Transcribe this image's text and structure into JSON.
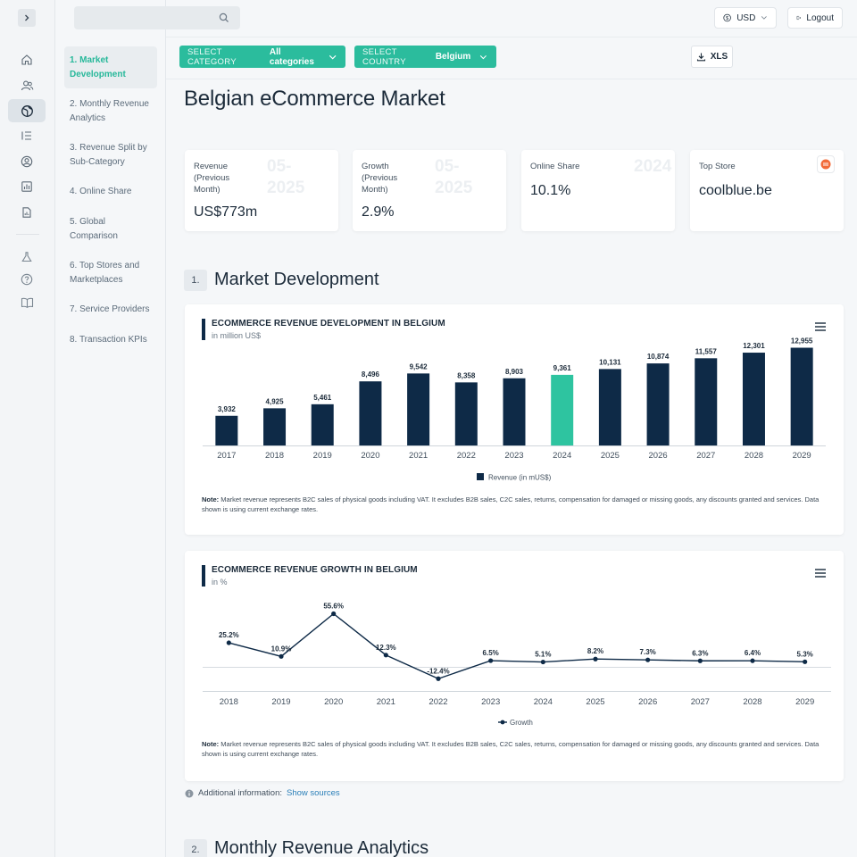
{
  "topbar": {
    "search_placeholder": "",
    "currency_label": "USD",
    "logout_label": "Logout"
  },
  "subnav": {
    "items": [
      {
        "label": "1. Market Development",
        "active": true
      },
      {
        "label": "2. Monthly Revenue Analytics",
        "active": false
      },
      {
        "label": "3. Revenue Split by Sub-Category",
        "active": false
      },
      {
        "label": "4. Online Share",
        "active": false
      },
      {
        "label": "5. Global Comparison",
        "active": false
      },
      {
        "label": "6. Top Stores and Marketplaces",
        "active": false
      },
      {
        "label": "7. Service Providers",
        "active": false
      },
      {
        "label": "8. Transaction KPIs",
        "active": false
      }
    ]
  },
  "filters": {
    "category_label": "SELECT CATEGORY",
    "category_value": "All categories",
    "country_label": "SELECT COUNTRY",
    "country_value": "Belgium",
    "export_label": "XLS"
  },
  "page_title": "Belgian eCommerce Market",
  "kpis": [
    {
      "label": "Revenue (Previous Month)",
      "date": "05-2025",
      "value": "US$773m"
    },
    {
      "label": "Growth (Previous Month)",
      "date": "05-2025",
      "value": "2.9%"
    },
    {
      "label": "Online Share",
      "date": "2024",
      "value": "10.1%"
    },
    {
      "label": "Top Store",
      "date": "",
      "value": "coolblue.be"
    }
  ],
  "sections": [
    {
      "number": "1.",
      "title": "Market Development"
    },
    {
      "number": "2.",
      "title": "Monthly Revenue Analytics"
    }
  ],
  "revenue_chart": {
    "title": "ECOMMERCE REVENUE DEVELOPMENT IN BELGIUM",
    "subtitle": "in million US$",
    "legend": "Revenue (in mUS$)",
    "note_bold": "Note:",
    "note_text": " Market revenue represents B2C sales of physical goods including VAT. It excludes B2B sales, C2C sales, returns, compensation for damaged or missing goods, any discounts granted and services. Data shown is using current exchange rates."
  },
  "growth_chart": {
    "title": "ECOMMERCE REVENUE GROWTH IN BELGIUM",
    "subtitle": "in %",
    "legend": "Growth",
    "note_bold": "Note:",
    "note_text": " Market revenue represents B2C sales of physical goods including VAT. It excludes B2B sales, C2C sales, returns, compensation for damaged or missing goods, any discounts granted and services. Data shown is using current exchange rates."
  },
  "additional_info": {
    "label": "Additional information:",
    "link": "Show sources"
  },
  "colors": {
    "accent": "#2bbc9d",
    "navy": "#0e2a47",
    "highlight_bar": "#2ec4a0"
  },
  "chart_data": [
    {
      "type": "bar",
      "title": "ECOMMERCE REVENUE DEVELOPMENT IN BELGIUM",
      "subtitle": "in million US$",
      "categories": [
        "2017",
        "2018",
        "2019",
        "2020",
        "2021",
        "2022",
        "2023",
        "2024",
        "2025",
        "2026",
        "2027",
        "2028",
        "2029"
      ],
      "series": [
        {
          "name": "Revenue (in mUS$)",
          "values": [
            3932,
            4925,
            5461,
            8496,
            9542,
            8358,
            8903,
            9361,
            10131,
            10874,
            11557,
            12301,
            12955
          ]
        }
      ],
      "highlight_category": "2024",
      "labels": [
        "3,932",
        "4,925",
        "5,461",
        "8,496",
        "9,542",
        "8,358",
        "8,903",
        "9,361",
        "10,131",
        "10,874",
        "11,557",
        "12,301",
        "12,955"
      ],
      "ylim": [
        0,
        14000
      ],
      "legend": "bottom-center"
    },
    {
      "type": "line",
      "title": "ECOMMERCE REVENUE GROWTH IN BELGIUM",
      "subtitle": "in %",
      "categories": [
        "2018",
        "2019",
        "2020",
        "2021",
        "2022",
        "2023",
        "2024",
        "2025",
        "2026",
        "2027",
        "2028",
        "2029"
      ],
      "series": [
        {
          "name": "Growth",
          "values": [
            25.2,
            10.9,
            55.6,
            12.3,
            -12.4,
            6.5,
            5.1,
            8.2,
            7.3,
            6.3,
            6.4,
            5.3
          ]
        }
      ],
      "labels": [
        "25.2%",
        "10.9%",
        "55.6%",
        "12.3%",
        "-12.4%",
        "6.5%",
        "5.1%",
        "8.2%",
        "7.3%",
        "6.3%",
        "6.4%",
        "5.3%"
      ],
      "ylim": [
        -15,
        60
      ],
      "legend": "bottom-center"
    }
  ]
}
